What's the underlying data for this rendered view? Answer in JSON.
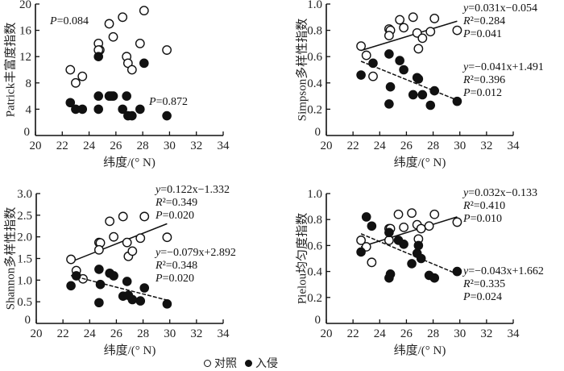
{
  "colors": {
    "open": "#ffffff",
    "filled": "#111111",
    "axis": "#111111"
  },
  "legend": {
    "open_label": "对照",
    "filled_label": "入侵"
  },
  "chart_data": [
    {
      "type": "scatter",
      "ylabel": "Patrick丰富度指数",
      "xlabel": "纬度/(° N)",
      "xlim": [
        20,
        34
      ],
      "xticks": [
        "20",
        "22",
        "24",
        "26",
        "28",
        "30",
        "32",
        "34"
      ],
      "ylim": [
        0,
        20
      ],
      "yticks": [
        "0",
        "4",
        "8",
        "12",
        "16",
        "20"
      ],
      "series": [
        {
          "name": "对照",
          "marker": "open",
          "points": [
            [
              22.6,
              10
            ],
            [
              23.0,
              8
            ],
            [
              23.5,
              9
            ],
            [
              24.7,
              14
            ],
            [
              24.8,
              13
            ],
            [
              24.7,
              13
            ],
            [
              25.5,
              17
            ],
            [
              25.8,
              15
            ],
            [
              26.5,
              18
            ],
            [
              26.8,
              12
            ],
            [
              26.9,
              11
            ],
            [
              27.2,
              10
            ],
            [
              27.8,
              14
            ],
            [
              28.1,
              19
            ],
            [
              29.8,
              13
            ]
          ],
          "annotation": [
            "P=0.084"
          ]
        },
        {
          "name": "入侵",
          "marker": "filled",
          "points": [
            [
              22.6,
              5
            ],
            [
              23.0,
              4
            ],
            [
              23.5,
              4
            ],
            [
              24.7,
              12
            ],
            [
              24.7,
              6
            ],
            [
              24.7,
              4
            ],
            [
              25.5,
              6
            ],
            [
              25.8,
              6
            ],
            [
              25.65,
              6
            ],
            [
              26.5,
              4
            ],
            [
              26.8,
              6
            ],
            [
              26.9,
              3
            ],
            [
              27.2,
              3
            ],
            [
              27.8,
              4
            ],
            [
              28.1,
              11
            ],
            [
              29.8,
              3
            ]
          ],
          "annotation": [
            "P=0.872"
          ]
        }
      ]
    },
    {
      "type": "scatter",
      "ylabel": "Simpson多样性指数",
      "xlabel": "纬度/(° N)",
      "xlim": [
        20,
        34
      ],
      "xticks": [
        "20",
        "22",
        "24",
        "26",
        "28",
        "30",
        "32",
        "34"
      ],
      "ylim": [
        0,
        1.0
      ],
      "yticks": [
        "0",
        "0.2",
        "0.4",
        "0.6",
        "0.8",
        "1.0"
      ],
      "series": [
        {
          "name": "对照",
          "marker": "open",
          "points": [
            [
              22.6,
              0.68
            ],
            [
              23.0,
              0.61
            ],
            [
              23.5,
              0.45
            ],
            [
              24.7,
              0.81
            ],
            [
              24.8,
              0.8
            ],
            [
              24.7,
              0.76
            ],
            [
              25.5,
              0.88
            ],
            [
              25.8,
              0.82
            ],
            [
              26.5,
              0.9
            ],
            [
              26.8,
              0.78
            ],
            [
              26.9,
              0.66
            ],
            [
              27.2,
              0.74
            ],
            [
              27.8,
              0.79
            ],
            [
              28.1,
              0.89
            ],
            [
              29.8,
              0.8
            ]
          ],
          "fit": {
            "slope": 0.031,
            "intercept": -0.054,
            "x_range": [
              22.6,
              29.8
            ],
            "dashed": false
          },
          "annotation": [
            "y=0.031x−0.054",
            "R²=0.284",
            "P=0.041"
          ]
        },
        {
          "name": "入侵",
          "marker": "filled",
          "points": [
            [
              22.6,
              0.46
            ],
            [
              23.5,
              0.55
            ],
            [
              24.7,
              0.62
            ],
            [
              24.8,
              0.37
            ],
            [
              24.7,
              0.24
            ],
            [
              25.5,
              0.57
            ],
            [
              25.8,
              0.5
            ],
            [
              26.5,
              0.31
            ],
            [
              26.8,
              0.44
            ],
            [
              26.9,
              0.43
            ],
            [
              27.2,
              0.31
            ],
            [
              27.8,
              0.23
            ],
            [
              28.1,
              0.34
            ],
            [
              29.8,
              0.26
            ]
          ],
          "fit": {
            "slope": -0.041,
            "intercept": 1.491,
            "x_range": [
              22.6,
              29.8
            ],
            "dashed": true
          },
          "annotation": [
            "y=−0.041x+1.491",
            "R²=0.396",
            "P=0.012"
          ]
        }
      ]
    },
    {
      "type": "scatter",
      "ylabel": "Shannon多样性指数",
      "xlabel": "纬度/(° N)",
      "xlim": [
        20,
        34
      ],
      "xticks": [
        "20",
        "22",
        "24",
        "26",
        "28",
        "30",
        "32",
        "34"
      ],
      "ylim": [
        0,
        3.0
      ],
      "yticks": [
        "0",
        "0.5",
        "1.0",
        "1.5",
        "2.0",
        "2.5",
        "3.0"
      ],
      "series": [
        {
          "name": "对照",
          "marker": "open",
          "points": [
            [
              22.6,
              1.48
            ],
            [
              23.0,
              1.22
            ],
            [
              23.5,
              1.03
            ],
            [
              24.7,
              1.87
            ],
            [
              24.8,
              1.86
            ],
            [
              24.7,
              1.7
            ],
            [
              25.5,
              2.36
            ],
            [
              25.8,
              2.0
            ],
            [
              26.5,
              2.47
            ],
            [
              26.8,
              1.87
            ],
            [
              26.9,
              1.55
            ],
            [
              27.2,
              1.67
            ],
            [
              27.8,
              1.97
            ],
            [
              28.1,
              2.47
            ],
            [
              29.8,
              1.99
            ]
          ],
          "fit": {
            "slope": 0.122,
            "intercept": -1.332,
            "x_range": [
              22.6,
              29.8
            ],
            "dashed": false
          },
          "annotation": [
            "y=0.122x−1.332",
            "R²=0.349",
            "P=0.020"
          ]
        },
        {
          "name": "入侵",
          "marker": "filled",
          "points": [
            [
              22.6,
              0.87
            ],
            [
              23.0,
              1.1
            ],
            [
              24.7,
              1.25
            ],
            [
              24.8,
              0.9
            ],
            [
              24.7,
              0.48
            ],
            [
              25.5,
              1.16
            ],
            [
              25.8,
              1.1
            ],
            [
              26.5,
              0.63
            ],
            [
              26.8,
              0.97
            ],
            [
              26.9,
              0.65
            ],
            [
              27.2,
              0.55
            ],
            [
              27.8,
              0.52
            ],
            [
              28.1,
              0.82
            ],
            [
              29.8,
              0.45
            ]
          ],
          "fit": {
            "slope": -0.079,
            "intercept": 2.892,
            "x_range": [
              22.6,
              29.8
            ],
            "dashed": true
          },
          "annotation": [
            "y=−0.079x+2.892",
            "R²=0.348",
            "P=0.020"
          ]
        }
      ]
    },
    {
      "type": "scatter",
      "ylabel": "Pielou均匀度指数",
      "xlabel": "纬度/(° N)",
      "xlim": [
        20,
        34
      ],
      "xticks": [
        "20",
        "22",
        "24",
        "26",
        "28",
        "30",
        "32",
        "34"
      ],
      "ylim": [
        0,
        1.0
      ],
      "yticks": [
        "0",
        "0.2",
        "0.4",
        "0.6",
        "0.8",
        "1.0"
      ],
      "series": [
        {
          "name": "对照",
          "marker": "open",
          "points": [
            [
              22.6,
              0.64
            ],
            [
              23.0,
              0.59
            ],
            [
              23.4,
              0.47
            ],
            [
              24.7,
              0.73
            ],
            [
              24.8,
              0.73
            ],
            [
              24.7,
              0.64
            ],
            [
              25.4,
              0.84
            ],
            [
              25.8,
              0.74
            ],
            [
              26.4,
              0.85
            ],
            [
              26.8,
              0.76
            ],
            [
              26.9,
              0.65
            ],
            [
              27.1,
              0.73
            ],
            [
              27.7,
              0.75
            ],
            [
              28.1,
              0.84
            ],
            [
              29.8,
              0.78
            ]
          ],
          "fit": {
            "slope": 0.032,
            "intercept": -0.133,
            "x_range": [
              22.6,
              29.8
            ],
            "dashed": false
          },
          "annotation": [
            "y=0.032x−0.133",
            "R²=0.410",
            "P=0.010"
          ]
        },
        {
          "name": "入侵",
          "marker": "filled",
          "points": [
            [
              22.6,
              0.55
            ],
            [
              23.0,
              0.82
            ],
            [
              23.4,
              0.75
            ],
            [
              24.7,
              0.7
            ],
            [
              24.8,
              0.38
            ],
            [
              24.7,
              0.35
            ],
            [
              25.4,
              0.64
            ],
            [
              25.8,
              0.61
            ],
            [
              26.4,
              0.46
            ],
            [
              26.8,
              0.54
            ],
            [
              26.9,
              0.6
            ],
            [
              27.1,
              0.5
            ],
            [
              27.7,
              0.37
            ],
            [
              28.1,
              0.35
            ],
            [
              29.8,
              0.4
            ]
          ],
          "fit": {
            "slope": -0.043,
            "intercept": 1.662,
            "x_range": [
              22.6,
              29.8
            ],
            "dashed": true
          },
          "annotation": [
            "y=−0.043x+1.662",
            "R²=0.335",
            "P=0.024"
          ]
        }
      ]
    }
  ]
}
